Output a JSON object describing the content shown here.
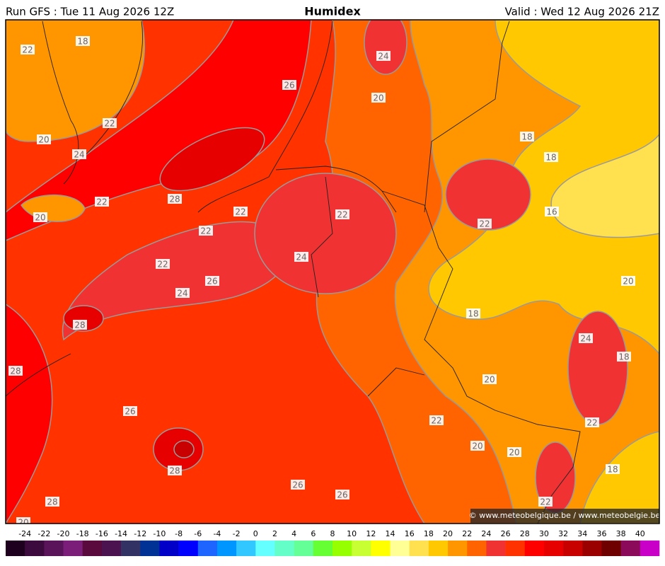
{
  "header": {
    "run": "Run GFS : Tue 11 Aug 2026 12Z",
    "title": "Humidex",
    "valid": "Valid : Wed 12 Aug 2026 21Z"
  },
  "map": {
    "contour_labels": [
      22,
      18,
      26,
      24,
      20,
      22,
      20,
      24,
      18,
      18,
      28,
      22,
      22,
      20,
      22,
      22,
      22,
      16,
      24,
      22,
      26,
      24,
      20,
      18,
      28,
      24,
      18,
      28,
      20,
      26,
      22,
      22,
      20,
      20,
      28,
      18,
      26,
      26,
      28,
      22,
      20
    ],
    "credit": "© www.meteobelgique.be / www.meteobelgie.be"
  },
  "legend": {
    "ticks": [
      -24,
      -22,
      -20,
      -18,
      -16,
      -14,
      -12,
      -10,
      -8,
      -6,
      -4,
      -2,
      0,
      2,
      4,
      6,
      8,
      10,
      12,
      14,
      16,
      18,
      20,
      22,
      24,
      26,
      28,
      30,
      32,
      34,
      36,
      38,
      40
    ],
    "colors": [
      "#1e001e",
      "#3c0a3c",
      "#5a145a",
      "#7a1e7a",
      "#5a0a3c",
      "#4b1450",
      "#323264",
      "#003296",
      "#0000c8",
      "#0000ff",
      "#1e64ff",
      "#0096ff",
      "#32c8ff",
      "#64ffff",
      "#64ffc8",
      "#64ff96",
      "#66ff33",
      "#96ff00",
      "#c8ff32",
      "#ffff00",
      "#ffff96",
      "#ffe150",
      "#ffc800",
      "#ff9600",
      "#ff6400",
      "#f03232",
      "#ff3200",
      "#ff0000",
      "#e60000",
      "#c80000",
      "#9b0000",
      "#6e0000",
      "#8c0a5a",
      "#c800c8"
    ]
  }
}
